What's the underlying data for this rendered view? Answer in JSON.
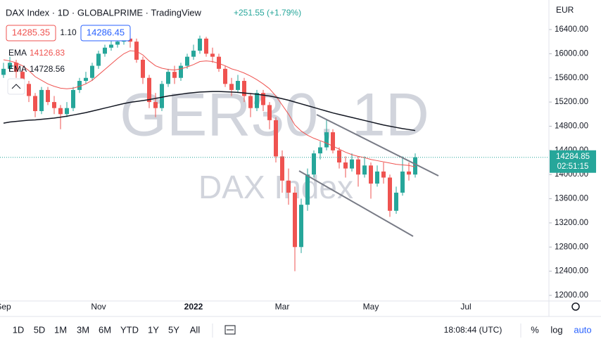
{
  "chart_data": {
    "type": "candlestick",
    "title": "DAX Index · 1D · GLOBALPRIME · TradingView",
    "change": "+251.55 (+1.79%)",
    "currency": "EUR",
    "bid": "14285.35",
    "spread": "1.10",
    "ask": "14286.45",
    "watermark": "GER30, 1D",
    "watermark_sub": "DAX Index",
    "countdown": "02:51:15",
    "up_color": "#26a69a",
    "down_color": "#ef5350",
    "categories": [
      "Sep",
      null,
      null,
      null,
      null,
      null,
      null,
      null,
      null,
      null,
      null,
      null,
      null,
      null,
      null,
      "Nov",
      null,
      null,
      null,
      null,
      null,
      null,
      null,
      null,
      null,
      null,
      null,
      null,
      null,
      null,
      "2022",
      null,
      null,
      null,
      null,
      null,
      null,
      null,
      null,
      null,
      null,
      null,
      null,
      null,
      "Mar",
      null,
      null,
      null,
      null,
      null,
      null,
      null,
      null,
      null,
      null,
      null,
      null,
      null,
      "May",
      null,
      null,
      null,
      null,
      null,
      null,
      null,
      null,
      null,
      null,
      null,
      null,
      null,
      null,
      "Jul",
      null,
      null,
      null,
      null,
      null,
      null,
      null,
      null,
      null,
      null,
      null,
      null,
      null
    ],
    "open": [
      15650,
      15750,
      15850,
      15700,
      15500,
      15300,
      15050,
      15400,
      15200,
      15100,
      15000,
      15100,
      15400,
      15550,
      15600,
      15800,
      16000,
      16100,
      16150,
      16200,
      16250,
      16200,
      15900,
      15600,
      15200,
      15100,
      15500,
      15700,
      15600,
      15800,
      15950,
      16050,
      16250,
      16000,
      15950,
      15750,
      15500,
      15400,
      15550,
      15300,
      15100,
      15350,
      15150,
      14900,
      14300,
      13900,
      13700,
      12800,
      13500,
      14000,
      14350,
      14450,
      14700,
      14400,
      14200,
      14100,
      14250,
      14000,
      14150,
      13850,
      14050,
      13950,
      13400,
      13700,
      14050,
      14000,
      null,
      null,
      null,
      null,
      null,
      null,
      null,
      null,
      null,
      null,
      null,
      null,
      null,
      null,
      null,
      null,
      null,
      null,
      null,
      null,
      null
    ],
    "high": [
      15850,
      15950,
      15900,
      15750,
      15550,
      15350,
      15450,
      15450,
      15300,
      15150,
      15200,
      15450,
      15600,
      15700,
      15850,
      16050,
      16150,
      16250,
      16300,
      16350,
      16300,
      16250,
      15950,
      15650,
      15350,
      15550,
      15750,
      15800,
      15850,
      16000,
      16150,
      16300,
      16280,
      16100,
      16000,
      15800,
      15600,
      15650,
      15600,
      15350,
      15400,
      15400,
      15200,
      14950,
      14400,
      14100,
      13800,
      13600,
      14100,
      14400,
      14550,
      14900,
      14750,
      14450,
      14300,
      14350,
      14300,
      14300,
      14200,
      14150,
      14200,
      14000,
      13800,
      14300,
      14200,
      14350,
      null,
      null,
      null,
      null,
      null,
      null,
      null,
      null,
      null,
      null,
      null,
      null,
      null,
      null,
      null,
      null,
      null,
      null,
      null,
      null,
      null
    ],
    "low": [
      15600,
      15700,
      15600,
      15400,
      15200,
      14950,
      15000,
      15150,
      15000,
      14750,
      14950,
      15050,
      15350,
      15500,
      15550,
      15750,
      15950,
      16050,
      16100,
      16150,
      16100,
      15850,
      15500,
      15100,
      14950,
      15050,
      15450,
      15500,
      15550,
      15750,
      15900,
      16000,
      15950,
      15850,
      15700,
      15450,
      15300,
      15350,
      15200,
      14950,
      15050,
      15050,
      14750,
      14200,
      13700,
      13500,
      12400,
      12700,
      13400,
      13950,
      14250,
      14400,
      14350,
      14100,
      13950,
      14050,
      13800,
      13950,
      13600,
      13800,
      13850,
      13300,
      13350,
      13650,
      13900,
      13950,
      null,
      null,
      null,
      null,
      null,
      null,
      null,
      null,
      null,
      null,
      null,
      null,
      null,
      null,
      null,
      null,
      null,
      null,
      null,
      null,
      null
    ],
    "close": [
      15750,
      15850,
      15700,
      15500,
      15300,
      15050,
      15400,
      15200,
      15100,
      15000,
      15100,
      15400,
      15550,
      15600,
      15800,
      16000,
      16100,
      16150,
      16200,
      16250,
      16200,
      15900,
      15600,
      15200,
      15100,
      15500,
      15700,
      15600,
      15800,
      15950,
      16050,
      16250,
      16000,
      15950,
      15750,
      15500,
      15400,
      15550,
      15300,
      15100,
      15350,
      15150,
      14900,
      14300,
      13900,
      13700,
      12800,
      13500,
      14000,
      14350,
      14450,
      14700,
      14400,
      14200,
      14100,
      14250,
      14000,
      14150,
      13850,
      14050,
      13950,
      13400,
      13700,
      14050,
      14000,
      14284.85,
      null,
      null,
      null,
      null,
      null,
      null,
      null,
      null,
      null,
      null,
      null,
      null,
      null,
      null,
      null,
      null,
      null,
      null,
      null,
      null,
      null
    ],
    "series": [
      {
        "name": "EMA",
        "color": "#ef5350",
        "values": [
          15900,
          15880,
          15850,
          15800,
          15720,
          15620,
          15560,
          15500,
          15460,
          15430,
          15420,
          15430,
          15460,
          15500,
          15560,
          15650,
          15740,
          15830,
          15920,
          16000,
          16050,
          16040,
          15980,
          15880,
          15800,
          15760,
          15740,
          15730,
          15750,
          15780,
          15820,
          15870,
          15880,
          15870,
          15840,
          15800,
          15750,
          15720,
          15680,
          15630,
          15570,
          15500,
          15420,
          15300,
          15150,
          15000,
          14820,
          14720,
          14650,
          14600,
          14560,
          14520,
          14470,
          14420,
          14370,
          14330,
          14300,
          14280,
          14250,
          14230,
          14210,
          14190,
          14170,
          14160,
          14150,
          14126.83,
          null,
          null,
          null,
          null,
          null,
          null,
          null,
          null,
          null,
          null,
          null,
          null,
          null,
          null,
          null,
          null,
          null,
          null,
          null,
          null,
          null
        ]
      },
      {
        "name": "EMA",
        "color": "#131722",
        "values": [
          14850,
          14870,
          14880,
          14890,
          14900,
          14905,
          14915,
          14925,
          14935,
          14950,
          14965,
          14985,
          15005,
          15025,
          15050,
          15075,
          15100,
          15125,
          15150,
          15175,
          15195,
          15210,
          15225,
          15240,
          15260,
          15280,
          15300,
          15315,
          15330,
          15345,
          15355,
          15365,
          15370,
          15375,
          15375,
          15370,
          15365,
          15360,
          15350,
          15340,
          15330,
          15315,
          15300,
          15280,
          15255,
          15230,
          15200,
          15170,
          15140,
          15110,
          15080,
          15050,
          15020,
          14995,
          14970,
          14945,
          14920,
          14895,
          14870,
          14845,
          14820,
          14800,
          14780,
          14760,
          14745,
          14728.56,
          null,
          null,
          null,
          null,
          null,
          null,
          null,
          null,
          null,
          null,
          null,
          null,
          null,
          null,
          null,
          null,
          null,
          null,
          null,
          null,
          null
        ]
      }
    ],
    "ylim": [
      11907,
      16889
    ],
    "yticks": [
      {
        "value": 12000,
        "label": "12000.00"
      },
      {
        "value": 12400,
        "label": "12400.00"
      },
      {
        "value": 12800,
        "label": "12800.00"
      },
      {
        "value": 13200,
        "label": "13200.00"
      },
      {
        "value": 13600,
        "label": "13600.00"
      },
      {
        "value": 14000,
        "label": "14000.00"
      },
      {
        "value": 14400,
        "label": "14400.00"
      },
      {
        "value": 14800,
        "label": "14800.00"
      },
      {
        "value": 15200,
        "label": "15200.00"
      },
      {
        "value": 15600,
        "label": "15600.00"
      },
      {
        "value": 16000,
        "label": "16000.00"
      },
      {
        "value": 16400,
        "label": "16400.00"
      }
    ],
    "toolbar": {
      "ranges": [
        "1D",
        "5D",
        "1M",
        "3M",
        "6M",
        "YTD",
        "1Y",
        "5Y",
        "All"
      ],
      "clock": "18:08:44 (UTC)",
      "percent": "%",
      "log": "log",
      "auto": "auto"
    }
  }
}
